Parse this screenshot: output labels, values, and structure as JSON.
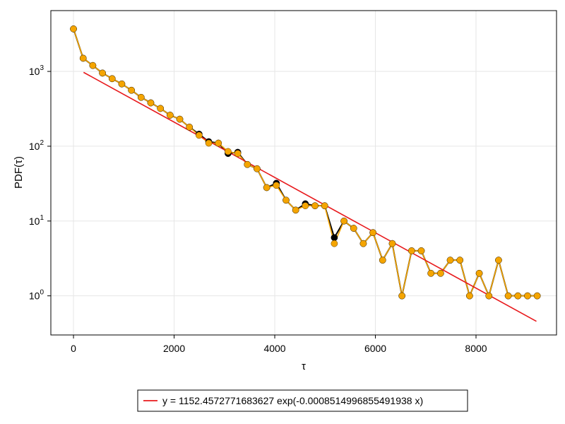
{
  "chart_data": {
    "type": "line",
    "title": "",
    "xlabel": "τ",
    "ylabel": "PDF(τ)",
    "xscale": "linear",
    "yscale": "log",
    "xlim": [
      -450,
      9600
    ],
    "ylim": [
      0.3,
      6500
    ],
    "grid": true,
    "x_ticks": [
      0,
      2000,
      4000,
      6000,
      8000
    ],
    "x_tick_labels": [
      "0",
      "2000",
      "4000",
      "6000",
      "8000"
    ],
    "y_ticks": [
      1,
      10,
      100,
      1000
    ],
    "y_tick_labels": [
      {
        "base": "10",
        "exp": "0"
      },
      {
        "base": "10",
        "exp": "1"
      },
      {
        "base": "10",
        "exp": "2"
      },
      {
        "base": "10",
        "exp": "3"
      }
    ],
    "series": [
      {
        "kind": "markers-line",
        "color": "#000000",
        "x": [
          0,
          192,
          384,
          576,
          768,
          960,
          1152,
          1344,
          1536,
          1728,
          1920,
          2112,
          2304,
          2496,
          2688,
          2880,
          3072,
          3264,
          3456,
          3648,
          3840,
          4032,
          4224,
          4416,
          4608,
          4800,
          4992,
          5184,
          5376,
          5568,
          5760,
          5952,
          6144,
          6336,
          6528,
          6720,
          6912,
          7104,
          7296,
          7488,
          7680,
          7872,
          8064,
          8256,
          8448,
          8640,
          8832,
          9024,
          9216
        ],
        "y": [
          3700,
          1500,
          1200,
          950,
          800,
          680,
          560,
          450,
          380,
          320,
          260,
          230,
          180,
          145,
          115,
          110,
          80,
          83,
          57,
          50,
          28,
          32,
          19,
          14,
          17,
          16,
          16,
          6,
          10,
          8,
          5,
          7,
          3,
          5,
          1,
          4,
          4,
          2,
          2,
          3,
          3,
          1,
          2,
          1,
          3,
          1,
          1,
          1,
          1
        ]
      },
      {
        "kind": "markers-line",
        "color": "#f5a500",
        "x": [
          0,
          192,
          384,
          576,
          768,
          960,
          1152,
          1344,
          1536,
          1728,
          1920,
          2112,
          2304,
          2496,
          2688,
          2880,
          3072,
          3264,
          3456,
          3648,
          3840,
          4032,
          4224,
          4416,
          4608,
          4800,
          4992,
          5184,
          5376,
          5568,
          5760,
          5952,
          6144,
          6336,
          6528,
          6720,
          6912,
          7104,
          7296,
          7488,
          7680,
          7872,
          8064,
          8256,
          8448,
          8640,
          8832,
          9024,
          9216
        ],
        "y": [
          3700,
          1500,
          1200,
          950,
          800,
          680,
          560,
          450,
          380,
          320,
          260,
          230,
          180,
          140,
          110,
          110,
          85,
          80,
          57,
          50,
          28,
          30,
          19,
          14,
          16,
          16,
          16,
          5,
          10,
          8,
          5,
          7,
          3,
          5,
          1,
          4,
          4,
          2,
          2,
          3,
          3,
          1,
          2,
          1,
          3,
          1,
          1,
          1,
          1
        ]
      },
      {
        "kind": "fit-line",
        "name": "y = 1152.4572771683627 exp(-0.0008514996855491938 x)",
        "color": "#e8191c",
        "x": [
          200,
          9200
        ],
        "amplitude": 1152.4572771683627,
        "rate": -0.0008514996855491938
      }
    ],
    "legend": {
      "position": "bottom-center",
      "entries": [
        "y = 1152.4572771683627 exp(-0.0008514996855491938 x)"
      ]
    }
  }
}
